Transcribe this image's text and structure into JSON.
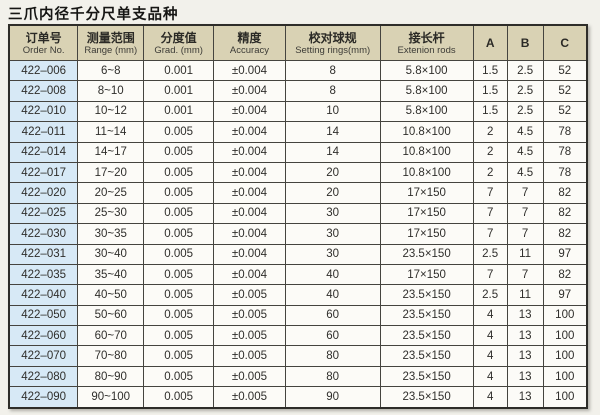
{
  "page": {
    "title": "三爪内径千分尺单支品种"
  },
  "colors": {
    "page_background": "#f2f1eb",
    "header_background": "#d9d2b4",
    "order_column_background": "#d7e9f6",
    "cell_background": "#fcfbf7",
    "grid_border": "#45443f",
    "text": "#2f2e2b"
  },
  "table": {
    "columns": [
      {
        "cn": "订单号",
        "en": "Order No."
      },
      {
        "cn": "测量范围",
        "en": "Range (mm)"
      },
      {
        "cn": "分度值",
        "en": "Grad. (mm)"
      },
      {
        "cn": "精度",
        "en": "Accuracy"
      },
      {
        "cn": "校对球规",
        "en": "Setting rings(mm)"
      },
      {
        "cn": "接长杆",
        "en": "Extenion rods"
      },
      {
        "cn": "A",
        "en": ""
      },
      {
        "cn": "B",
        "en": ""
      },
      {
        "cn": "C",
        "en": ""
      }
    ],
    "rows": [
      [
        "422–006",
        "6~8",
        "0.001",
        "±0.004",
        "8",
        "5.8×100",
        "1.5",
        "2.5",
        "52"
      ],
      [
        "422–008",
        "8~10",
        "0.001",
        "±0.004",
        "8",
        "5.8×100",
        "1.5",
        "2.5",
        "52"
      ],
      [
        "422–010",
        "10~12",
        "0.001",
        "±0.004",
        "10",
        "5.8×100",
        "1.5",
        "2.5",
        "52"
      ],
      [
        "422–011",
        "11~14",
        "0.005",
        "±0.004",
        "14",
        "10.8×100",
        "2",
        "4.5",
        "78"
      ],
      [
        "422–014",
        "14~17",
        "0.005",
        "±0.004",
        "14",
        "10.8×100",
        "2",
        "4.5",
        "78"
      ],
      [
        "422–017",
        "17~20",
        "0.005",
        "±0.004",
        "20",
        "10.8×100",
        "2",
        "4.5",
        "78"
      ],
      [
        "422–020",
        "20~25",
        "0.005",
        "±0.004",
        "20",
        "17×150",
        "7",
        "7",
        "82"
      ],
      [
        "422–025",
        "25~30",
        "0.005",
        "±0.004",
        "30",
        "17×150",
        "7",
        "7",
        "82"
      ],
      [
        "422–030",
        "30~35",
        "0.005",
        "±0.004",
        "30",
        "17×150",
        "7",
        "7",
        "82"
      ],
      [
        "422–031",
        "30~40",
        "0.005",
        "±0.004",
        "30",
        "23.5×150",
        "2.5",
        "11",
        "97"
      ],
      [
        "422–035",
        "35~40",
        "0.005",
        "±0.004",
        "40",
        "17×150",
        "7",
        "7",
        "82"
      ],
      [
        "422–040",
        "40~50",
        "0.005",
        "±0.005",
        "40",
        "23.5×150",
        "2.5",
        "11",
        "97"
      ],
      [
        "422–050",
        "50~60",
        "0.005",
        "±0.005",
        "60",
        "23.5×150",
        "4",
        "13",
        "100"
      ],
      [
        "422–060",
        "60~70",
        "0.005",
        "±0.005",
        "60",
        "23.5×150",
        "4",
        "13",
        "100"
      ],
      [
        "422–070",
        "70~80",
        "0.005",
        "±0.005",
        "80",
        "23.5×150",
        "4",
        "13",
        "100"
      ],
      [
        "422–080",
        "80~90",
        "0.005",
        "±0.005",
        "80",
        "23.5×150",
        "4",
        "13",
        "100"
      ],
      [
        "422–090",
        "90~100",
        "0.005",
        "±0.005",
        "90",
        "23.5×150",
        "4",
        "13",
        "100"
      ]
    ]
  }
}
